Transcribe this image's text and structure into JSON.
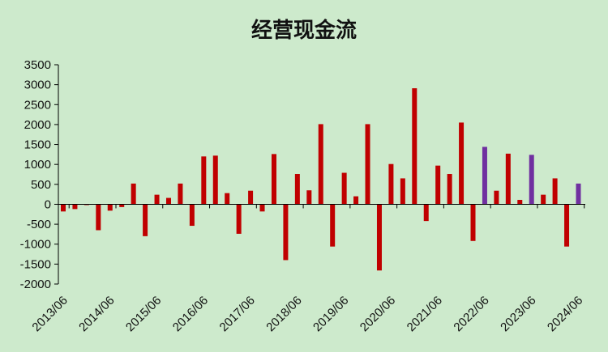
{
  "chart_data": {
    "type": "bar",
    "title": "经营现金流",
    "xlabel": "",
    "ylabel": "",
    "ylim": [
      -2000,
      3500
    ],
    "yticks": [
      -2000,
      -1500,
      -1000,
      -500,
      0,
      500,
      1000,
      1500,
      2000,
      2500,
      3000,
      3500
    ],
    "grid": false,
    "legend": "none",
    "colors": {
      "default": "#c00000",
      "highlight": "#7030a0",
      "background": "#cdeacc",
      "axis": "#000000"
    },
    "x_tick_labels": [
      "2013/06",
      "2014/06",
      "2015/06",
      "2016/06",
      "2017/06",
      "2018/06",
      "2019/06",
      "2020/06",
      "2021/06",
      "2022/06",
      "2023/06",
      "2024/06"
    ],
    "categories": [
      "2013/06",
      "2013/09",
      "2013/12",
      "2014/03",
      "2014/06",
      "2014/09",
      "2014/12",
      "2015/03",
      "2015/06",
      "2015/09",
      "2015/12",
      "2016/03",
      "2016/06",
      "2016/09",
      "2016/12",
      "2017/03",
      "2017/06",
      "2017/09",
      "2017/12",
      "2018/03",
      "2018/06",
      "2018/09",
      "2018/12",
      "2019/03",
      "2019/06",
      "2019/09",
      "2019/12",
      "2020/03",
      "2020/06",
      "2020/09",
      "2020/12",
      "2021/03",
      "2021/06",
      "2021/09",
      "2021/12",
      "2022/03",
      "2022/06",
      "2022/09",
      "2022/12",
      "2023/03",
      "2023/06",
      "2023/09",
      "2023/12",
      "2024/03",
      "2024/06"
    ],
    "values": [
      -180,
      -120,
      -20,
      -650,
      -160,
      -70,
      520,
      -800,
      240,
      160,
      520,
      -540,
      1200,
      1220,
      280,
      -740,
      340,
      -180,
      1260,
      -1400,
      760,
      350,
      2010,
      -1060,
      790,
      200,
      2010,
      -1660,
      1010,
      650,
      2910,
      -420,
      970,
      760,
      2050,
      -920,
      1440,
      340,
      1270,
      110,
      1240,
      240,
      650,
      -1060,
      520
    ],
    "highlight_indices": [
      36,
      40,
      44
    ]
  }
}
